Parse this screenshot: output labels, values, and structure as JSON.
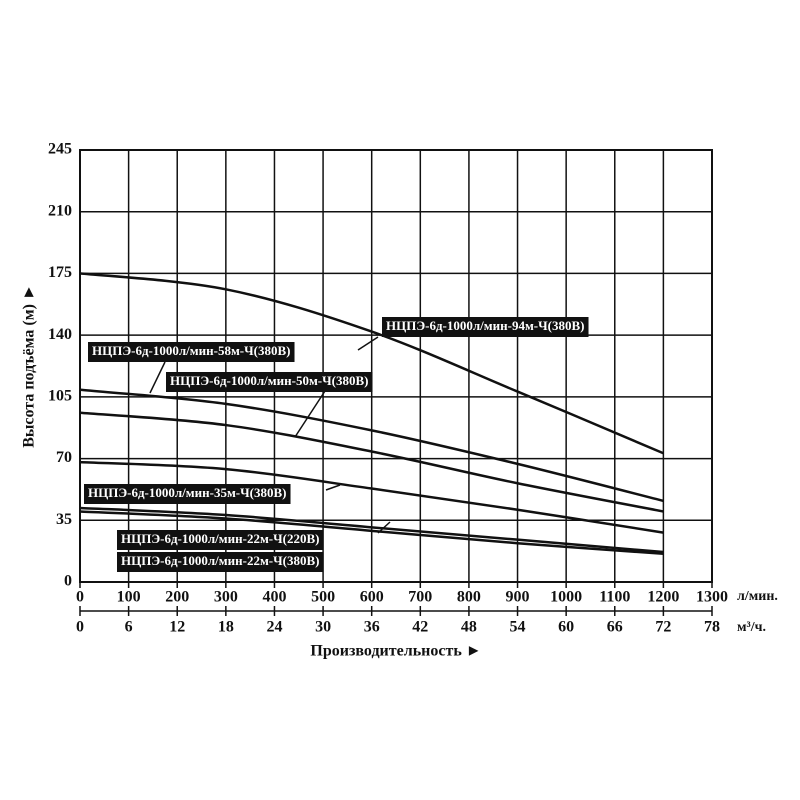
{
  "chart_data": {
    "type": "line",
    "y_label": "Высота подъёма (м) ►",
    "x_label": "Производительность ►",
    "x_unit": "л/мин.",
    "x2_unit": "м³/ч.",
    "x": [
      0,
      300,
      600,
      900,
      1200
    ],
    "xlim": [
      0,
      1300
    ],
    "xticks": [
      0,
      100,
      200,
      300,
      400,
      500,
      600,
      700,
      800,
      900,
      1000,
      1100,
      1200,
      1300
    ],
    "x2lim": [
      0,
      78
    ],
    "x2ticks": [
      0,
      6,
      12,
      18,
      24,
      30,
      36,
      42,
      48,
      54,
      60,
      66,
      72,
      78
    ],
    "ylim": [
      0,
      245
    ],
    "yticks": [
      0,
      35,
      70,
      105,
      140,
      175,
      210,
      245
    ],
    "grid": true,
    "series": [
      {
        "name": "НЦПЭ-6д-1000л/мин-94м-Ч(380В)",
        "color": "#111111",
        "values": [
          175,
          166,
          142,
          108,
          73
        ]
      },
      {
        "name": "НЦПЭ-6д-1000л/мин-58м-Ч(380В)",
        "color": "#111111",
        "values": [
          109,
          101,
          86,
          67,
          46
        ]
      },
      {
        "name": "НЦПЭ-6д-1000л/мин-50м-Ч(380В)",
        "color": "#111111",
        "values": [
          96,
          89,
          74,
          56,
          40
        ]
      },
      {
        "name": "НЦПЭ-6д-1000л/мин-35м-Ч(380В)",
        "color": "#111111",
        "values": [
          68,
          64,
          53,
          41,
          28
        ]
      },
      {
        "name": "НЦПЭ-6д-1000л/мин-22м-Ч(220В)",
        "color": "#111111",
        "values": [
          42,
          38,
          31,
          24,
          17
        ]
      },
      {
        "name": "НЦПЭ-6д-1000л/мин-22м-Ч(380В)",
        "color": "#111111",
        "values": [
          40,
          36,
          29,
          22,
          16
        ]
      }
    ]
  }
}
